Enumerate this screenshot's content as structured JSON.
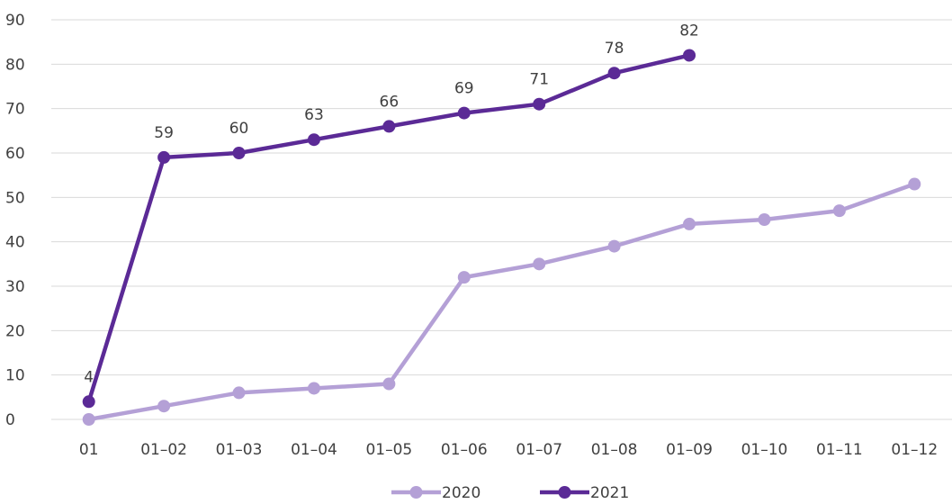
{
  "chart_data": {
    "type": "line",
    "title": "",
    "xlabel": "",
    "ylabel": "",
    "categories": [
      "01",
      "01–02",
      "01–03",
      "01–04",
      "01–05",
      "01–06",
      "01–07",
      "01–08",
      "01–09",
      "01–10",
      "01–11",
      "01–12"
    ],
    "ylim": [
      0,
      90
    ],
    "yticks": [
      0,
      10,
      20,
      30,
      40,
      50,
      60,
      70,
      80,
      90
    ],
    "grid": true,
    "legend": "bottom",
    "series": [
      {
        "name": "2020",
        "color": "#b4a0d6",
        "values": [
          0,
          3,
          6,
          7,
          8,
          32,
          35,
          39,
          44,
          45,
          47,
          53
        ],
        "show_labels": false
      },
      {
        "name": "2021",
        "color": "#5b2a96",
        "values": [
          4,
          59,
          60,
          63,
          66,
          69,
          71,
          78,
          82,
          null,
          null,
          null
        ],
        "show_labels": true
      }
    ]
  }
}
